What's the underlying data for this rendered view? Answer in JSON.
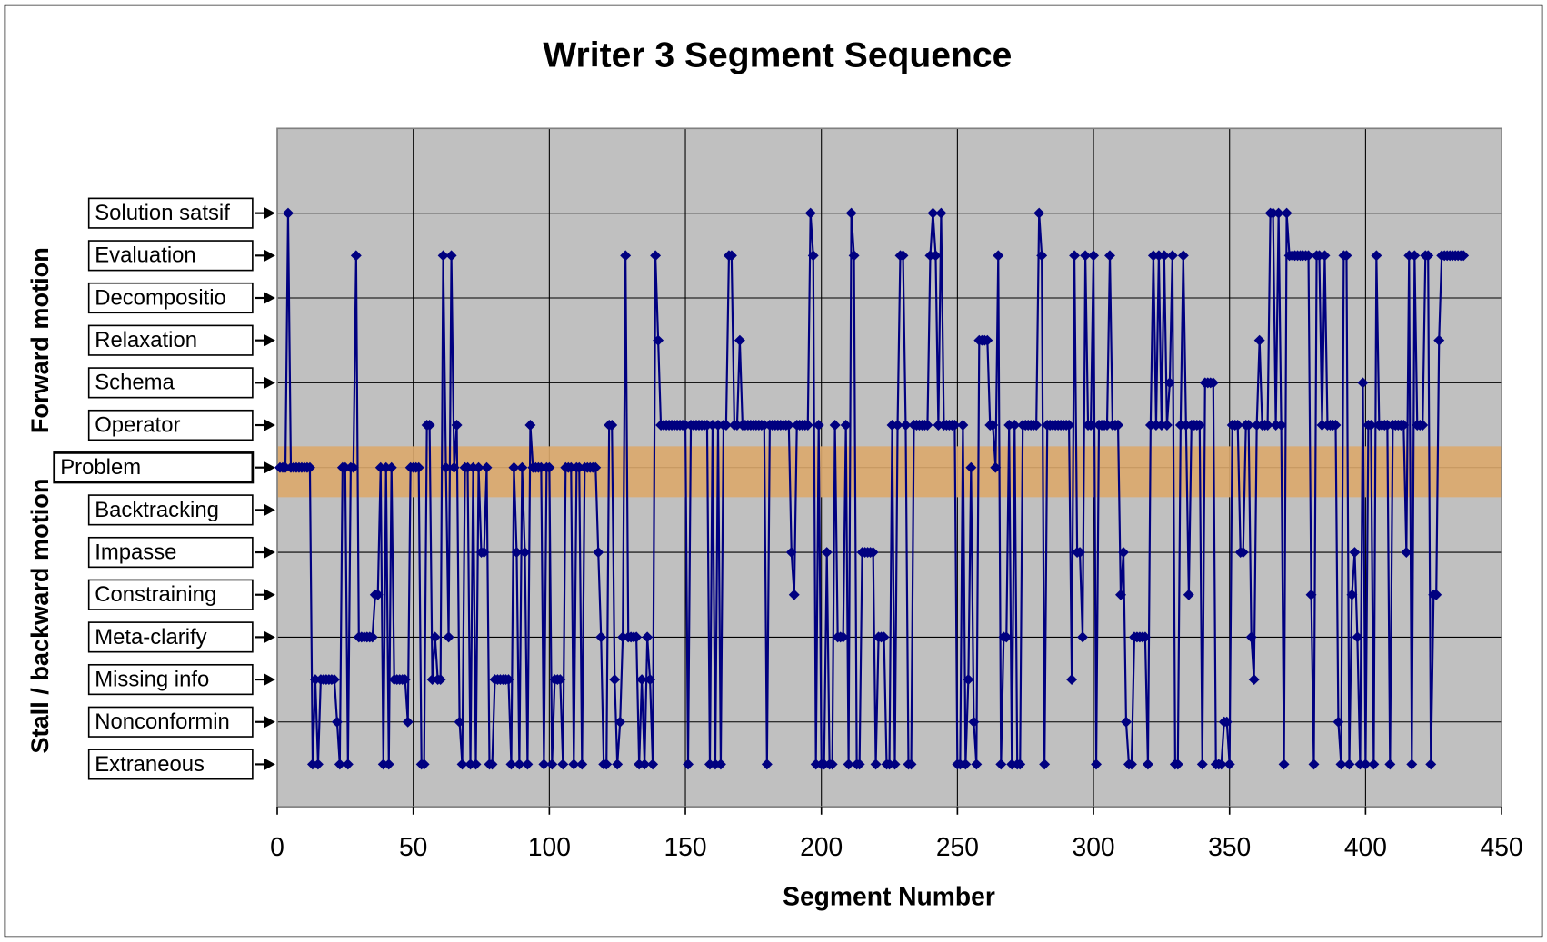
{
  "chart_data": {
    "type": "line",
    "title": "Writer 3 Segment Sequence",
    "xlabel": "Segment Number",
    "side_labels": [
      {
        "value": 3,
        "label": "Forward motion"
      },
      {
        "value": -3.5,
        "label": "Stall / backward motion"
      }
    ],
    "xlim": [
      0,
      450
    ],
    "xticks": [
      0,
      50,
      100,
      150,
      200,
      250,
      300,
      350,
      400,
      450
    ],
    "ylim": [
      -8,
      8
    ],
    "yticks": [
      -8,
      -6,
      -4,
      -2,
      0,
      2,
      4,
      6,
      8
    ],
    "grid": true,
    "ylabels": [
      {
        "value": 6,
        "label": "Solution satsif"
      },
      {
        "value": 5,
        "label": "Evaluation"
      },
      {
        "value": 4,
        "label": "Decompositio"
      },
      {
        "value": 3,
        "label": "Relaxation"
      },
      {
        "value": 2,
        "label": "Schema"
      },
      {
        "value": 1,
        "label": "Operator"
      },
      {
        "value": 0,
        "label": "Problem"
      },
      {
        "value": -1,
        "label": "Backtracking"
      },
      {
        "value": -2,
        "label": "Impasse"
      },
      {
        "value": -3,
        "label": "Constraining"
      },
      {
        "value": -4,
        "label": "Meta-clarify"
      },
      {
        "value": -5,
        "label": "Missing info"
      },
      {
        "value": -6,
        "label": "Nonconformin"
      },
      {
        "value": -7,
        "label": "Extraneous"
      }
    ],
    "band": [
      -0.7,
      0.5
    ],
    "band_color": "#dba86c",
    "background": "#c0c0c0",
    "series": [
      {
        "color": "#000080",
        "x": [
          1,
          2,
          3,
          4,
          5,
          6,
          7,
          8,
          9,
          10,
          11,
          12,
          13,
          14,
          15,
          16,
          17,
          18,
          19,
          20,
          21,
          22,
          23,
          24,
          25,
          26,
          27,
          28,
          29,
          30,
          31,
          32,
          33,
          34,
          35,
          36,
          37,
          38,
          39,
          40,
          41,
          42,
          43,
          44,
          45,
          46,
          47,
          48,
          49,
          50,
          51,
          52,
          53,
          54,
          55,
          56,
          57,
          58,
          59,
          60,
          61,
          62,
          63,
          64,
          65,
          66,
          67,
          68,
          69,
          70,
          71,
          72,
          73,
          74,
          75,
          76,
          77,
          78,
          79,
          80,
          81,
          82,
          83,
          84,
          85,
          86,
          87,
          88,
          89,
          90,
          91,
          92,
          93,
          94,
          95,
          96,
          97,
          98,
          99,
          100,
          101,
          102,
          103,
          104,
          105,
          106,
          107,
          108,
          109,
          110,
          111,
          112,
          113,
          114,
          115,
          116,
          117,
          118,
          119,
          120,
          121,
          122,
          123,
          124,
          125,
          126,
          127,
          128,
          129,
          130,
          131,
          132,
          133,
          134,
          135,
          136,
          137,
          138,
          139,
          140,
          141,
          142,
          143,
          144,
          145,
          146,
          147,
          148,
          149,
          150,
          151,
          152,
          153,
          154,
          155,
          156,
          157,
          158,
          159,
          160,
          161,
          162,
          163,
          164,
          165,
          166,
          167,
          168,
          169,
          170,
          171,
          172,
          173,
          174,
          175,
          176,
          177,
          178,
          179,
          180,
          181,
          182,
          183,
          184,
          185,
          186,
          187,
          188,
          189,
          190,
          191,
          192,
          193,
          194,
          195,
          196,
          197,
          198,
          199,
          200,
          201,
          202,
          203,
          204,
          205,
          206,
          207,
          208,
          209,
          210,
          211,
          212,
          213,
          214,
          215,
          216,
          217,
          218,
          219,
          220,
          221,
          222,
          223,
          224,
          225,
          226,
          227,
          228,
          229,
          230,
          231,
          232,
          233,
          234,
          235,
          236,
          237,
          238,
          239,
          240,
          241,
          242,
          243,
          244,
          245,
          246,
          247,
          248,
          249,
          250,
          251,
          252,
          253,
          254,
          255,
          256,
          257,
          258,
          259,
          260,
          261,
          262,
          263,
          264,
          265,
          266,
          267,
          268,
          269,
          270,
          271,
          272,
          273,
          274,
          275,
          276,
          277,
          278,
          279,
          280,
          281,
          282,
          283,
          284,
          285,
          286,
          287,
          288,
          289,
          290,
          291,
          292,
          293,
          294,
          295,
          296,
          297,
          298,
          299,
          300,
          301,
          302,
          303,
          304,
          305,
          306,
          307,
          308,
          309,
          310,
          311,
          312,
          313,
          314,
          315,
          316,
          317,
          318,
          319,
          320,
          321,
          322,
          323,
          324,
          325,
          326,
          327,
          328,
          329,
          330,
          331,
          332,
          333,
          334,
          335,
          336,
          337,
          338,
          339,
          340,
          341,
          342,
          343,
          344,
          345,
          346,
          347,
          348,
          349,
          350,
          351,
          352,
          353,
          354,
          355,
          356,
          357,
          358,
          359,
          360,
          361,
          362,
          363,
          364,
          365,
          366,
          367,
          368,
          369,
          370,
          371,
          372,
          373,
          374,
          375,
          376,
          377,
          378,
          379,
          380,
          381,
          382,
          383,
          384,
          385,
          386,
          387,
          388,
          389,
          390,
          391,
          392,
          393,
          394,
          395,
          396,
          397,
          398,
          399,
          400,
          401,
          402,
          403,
          404,
          405,
          406,
          407,
          408,
          409,
          410,
          411,
          412,
          413,
          414,
          415,
          416,
          417,
          418,
          419,
          420,
          421,
          422,
          423,
          424,
          425,
          426,
          427,
          428,
          429,
          430,
          431,
          432,
          433,
          434,
          435,
          436
        ],
        "values": [
          0,
          0,
          0,
          6,
          0,
          0,
          0,
          0,
          0,
          0,
          0,
          0,
          -7,
          -5,
          -7,
          -5,
          -5,
          -5,
          -5,
          -5,
          -5,
          -6,
          -7,
          0,
          0,
          -7,
          0,
          0,
          5,
          -4,
          -4,
          -4,
          -4,
          -4,
          -4,
          -3,
          -3,
          0,
          -7,
          0,
          -7,
          0,
          -5,
          -5,
          -5,
          -5,
          -5,
          -6,
          0,
          0,
          0,
          0,
          -7,
          -7,
          1,
          1,
          -5,
          -4,
          -5,
          -5,
          5,
          0,
          -4,
          5,
          0,
          1,
          -6,
          -7,
          0,
          0,
          -7,
          0,
          -7,
          0,
          -2,
          -2,
          0,
          -7,
          -7,
          -5,
          -5,
          -5,
          -5,
          -5,
          -5,
          -7,
          0,
          -2,
          -7,
          0,
          -2,
          -7,
          1,
          0,
          0,
          0,
          0,
          -7,
          0,
          0,
          -7,
          -5,
          -5,
          -5,
          -7,
          0,
          0,
          0,
          -7,
          0,
          0,
          -7,
          0,
          0,
          0,
          0,
          0,
          -2,
          -4,
          -7,
          -7,
          1,
          1,
          -5,
          -7,
          -6,
          -4,
          5,
          -4,
          -4,
          -4,
          -4,
          -7,
          -5,
          -7,
          -4,
          -5,
          -7,
          5,
          3,
          1,
          1,
          1,
          1,
          1,
          1,
          1,
          1,
          1,
          1,
          -7,
          1,
          1,
          1,
          1,
          1,
          1,
          1,
          -7,
          1,
          -7,
          1,
          -7,
          1,
          1,
          5,
          5,
          1,
          1,
          3,
          1,
          1,
          1,
          1,
          1,
          1,
          1,
          1,
          1,
          -7,
          1,
          1,
          1,
          1,
          1,
          1,
          1,
          1,
          -2,
          -3,
          1,
          1,
          1,
          1,
          1,
          6,
          5,
          -7,
          1,
          -7,
          -7,
          -2,
          -7,
          -7,
          1,
          -4,
          -4,
          -4,
          1,
          -7,
          6,
          5,
          -7,
          -7,
          -2,
          -2,
          -2,
          -2,
          -2,
          -7,
          -4,
          -4,
          -4,
          -7,
          -7,
          1,
          -7,
          1,
          5,
          5,
          1,
          -7,
          -7,
          1,
          1,
          1,
          1,
          1,
          1,
          5,
          6,
          5,
          1,
          6,
          1,
          1,
          1,
          1,
          1,
          -7,
          -7,
          1,
          -7,
          -5,
          0,
          -6,
          -7,
          3,
          3,
          3,
          3,
          1,
          1,
          0,
          5,
          -7,
          -4,
          -4,
          1,
          -7,
          1,
          -7,
          -7,
          1,
          1,
          1,
          1,
          1,
          1,
          6,
          5,
          -7,
          1,
          1,
          1,
          1,
          1,
          1,
          1,
          1,
          1,
          -5,
          5,
          -2,
          -2,
          -4,
          5,
          1,
          1,
          5,
          -7,
          1,
          1,
          1,
          1,
          5,
          1,
          1,
          1,
          -3,
          -2,
          -6,
          -7,
          -7,
          -4,
          -4,
          -4,
          -4,
          -4,
          -7,
          1,
          5,
          1,
          5,
          1,
          5,
          1,
          2,
          5,
          -7,
          -7,
          1,
          5,
          1,
          -3,
          1,
          1,
          1,
          1,
          -7,
          2,
          2,
          2,
          2,
          -7,
          -7,
          -7,
          -6,
          -6,
          -7,
          1,
          1,
          1,
          -2,
          -2,
          1,
          1,
          -4,
          -5,
          1,
          3,
          1,
          1,
          1,
          6,
          6,
          1,
          6,
          1,
          -7,
          6,
          5,
          5,
          5,
          5,
          5,
          5,
          5,
          5,
          -3,
          -7,
          5,
          5,
          1,
          5,
          1,
          1,
          1,
          1,
          -6,
          -7,
          5,
          5,
          -7,
          -3,
          -2,
          -4,
          -7,
          2,
          -7,
          1,
          1,
          -7,
          5,
          1,
          1,
          1,
          1,
          -7,
          1,
          1,
          1,
          1,
          1,
          -2,
          5,
          -7,
          5,
          1,
          1,
          1,
          5,
          5,
          -7,
          -3,
          -3,
          3,
          5,
          5,
          5,
          5,
          5,
          5,
          5,
          5,
          5
        ]
      }
    ]
  }
}
